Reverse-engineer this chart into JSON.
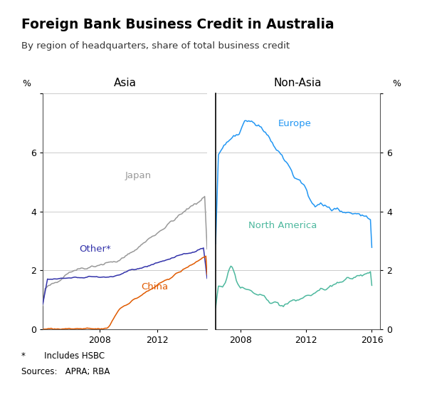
{
  "title": "Foreign Bank Business Credit in Australia",
  "subtitle": "By region of headquarters, share of total business credit",
  "ylabel_left": "%",
  "ylabel_right": "%",
  "ylim": [
    0,
    8
  ],
  "yticks": [
    0,
    2,
    4,
    6,
    8
  ],
  "asia_label": "Asia",
  "nonasia_label": "Non-Asia",
  "footnote1": "*       Includes HSBC",
  "footnote2": "Sources:   APRA; RBA",
  "asia_xlim": [
    2004.0,
    2015.5
  ],
  "asia_xticks": [
    2008,
    2012
  ],
  "nonasia_xlim": [
    2006.5,
    2016.5
  ],
  "nonasia_xticks": [
    2008,
    2012,
    2016
  ],
  "colors": {
    "japan": "#999999",
    "other": "#3333aa",
    "china": "#e05a00",
    "europe": "#2196F3",
    "north_america": "#4db89e"
  },
  "label_texts": {
    "japan": "Japan",
    "other": "Other*",
    "china": "China",
    "europe": "Europe",
    "north_america": "North America"
  }
}
